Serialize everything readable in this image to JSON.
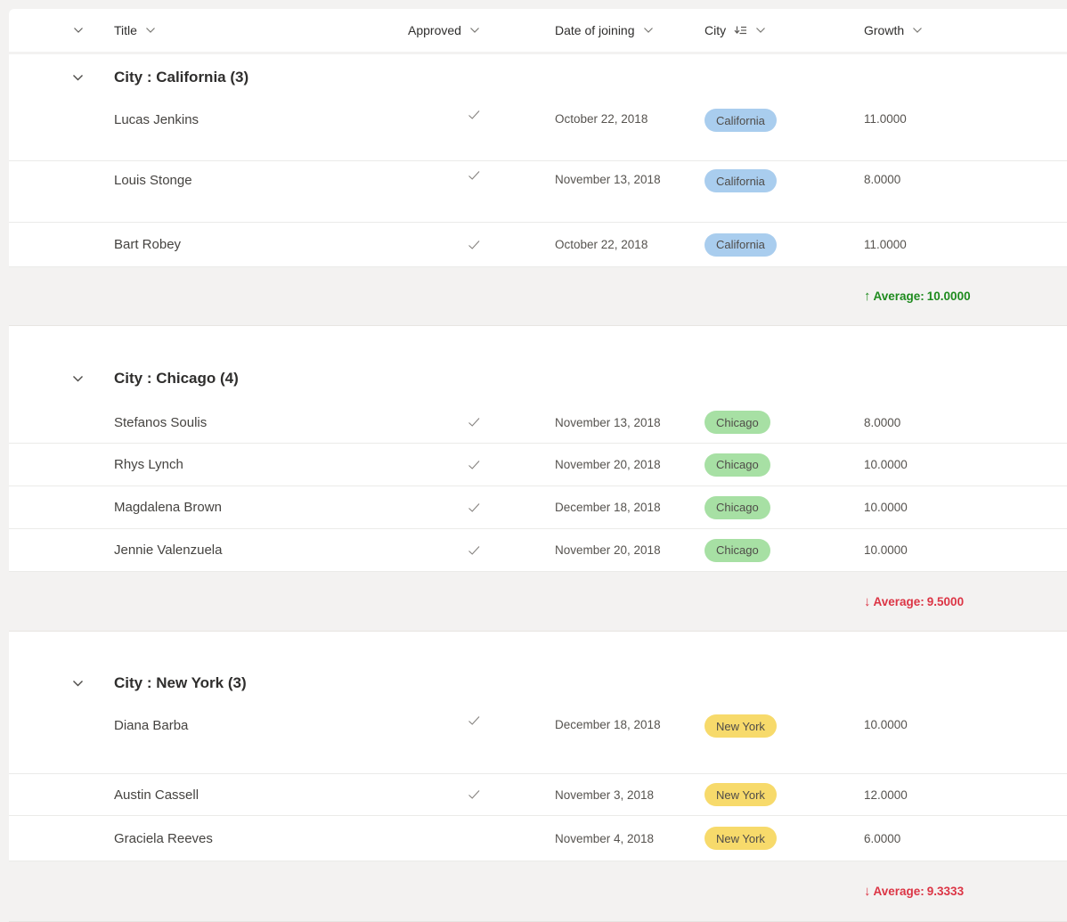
{
  "grid": {
    "header": {
      "columns": [
        {
          "label": "Title"
        },
        {
          "label": "Approved"
        },
        {
          "label": "Date of joining"
        },
        {
          "label": "City",
          "grouped": true
        },
        {
          "label": "Growth"
        }
      ]
    },
    "groups": [
      {
        "title": "City : California (3)",
        "rows": [
          {
            "title": "Lucas Jenkins",
            "approved": true,
            "date": "October 22, 2018",
            "city": "California",
            "growth": "11.0000"
          },
          {
            "title": "Louis Stonge",
            "approved": true,
            "date": "November 13, 2018",
            "city": "California",
            "growth": "8.0000"
          },
          {
            "title": "Bart Robey",
            "approved": true,
            "date": "October 22, 2018",
            "city": "California",
            "growth": "11.0000"
          }
        ],
        "summary": {
          "label": "Average:",
          "value": "10.0000",
          "direction": "up"
        }
      },
      {
        "title": "City : Chicago (4)",
        "rows": [
          {
            "title": "Stefanos Soulis",
            "approved": true,
            "date": "November 13, 2018",
            "city": "Chicago",
            "growth": "8.0000"
          },
          {
            "title": "Rhys Lynch",
            "approved": true,
            "date": "November 20, 2018",
            "city": "Chicago",
            "growth": "10.0000"
          },
          {
            "title": "Magdalena Brown",
            "approved": true,
            "date": "December 18, 2018",
            "city": "Chicago",
            "growth": "10.0000"
          },
          {
            "title": "Jennie Valenzuela",
            "approved": true,
            "date": "November 20, 2018",
            "city": "Chicago",
            "growth": "10.0000"
          }
        ],
        "summary": {
          "label": "Average:",
          "value": "9.5000",
          "direction": "down"
        }
      },
      {
        "title": "City : New York (3)",
        "rows": [
          {
            "title": "Diana Barba",
            "approved": true,
            "date": "December 18, 2018",
            "city": "New York",
            "growth": "10.0000"
          },
          {
            "title": "Austin Cassell",
            "approved": true,
            "date": "November 3, 2018",
            "city": "New York",
            "growth": "12.0000"
          },
          {
            "title": "Graciela Reeves",
            "approved": false,
            "date": "November 4, 2018",
            "city": "New York",
            "growth": "6.0000"
          }
        ],
        "summary": {
          "label": "Average:",
          "value": "9.3333",
          "direction": "down"
        }
      }
    ]
  },
  "badge_colors": {
    "California": "#a9cdee",
    "Chicago": "#a7e0a4",
    "New York": "#f7da6b"
  },
  "summary_colors": {
    "up": "#1e8b1e",
    "down": "#dc3545"
  },
  "icons": {
    "up_arrow": "↑",
    "down_arrow": "↓",
    "chevron_down": "chevron-down",
    "checkmark": "checkmark",
    "grouped_column": "group-by-indicator"
  }
}
